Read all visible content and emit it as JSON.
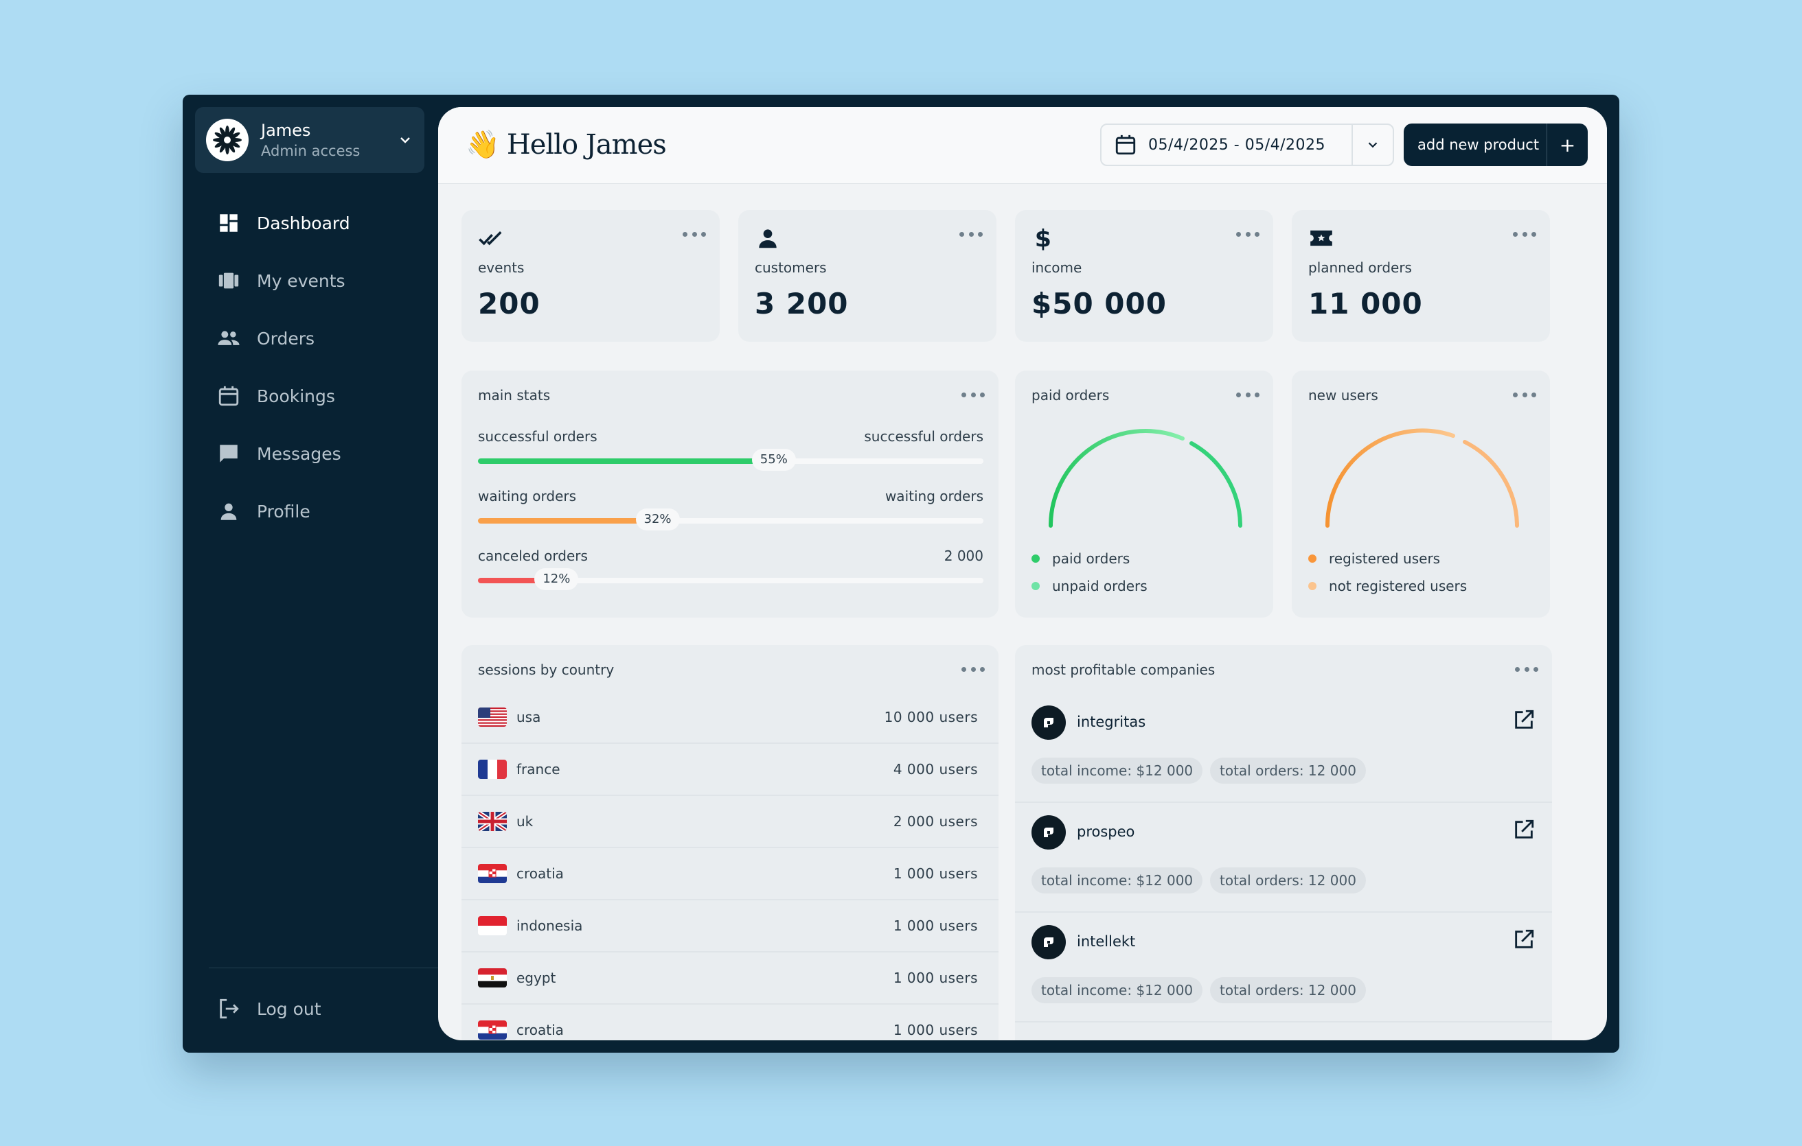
{
  "user": {
    "name": "James",
    "role": "Admin access"
  },
  "nav": {
    "items": [
      {
        "label": "Dashboard",
        "icon": "dashboard-icon",
        "active": true
      },
      {
        "label": "My events",
        "icon": "events-icon",
        "active": false
      },
      {
        "label": "Orders",
        "icon": "people-icon",
        "active": false
      },
      {
        "label": "Bookings",
        "icon": "calendar-icon",
        "active": false
      },
      {
        "label": "Messages",
        "icon": "message-icon",
        "active": false
      },
      {
        "label": "Profile",
        "icon": "person-icon",
        "active": false
      }
    ],
    "logout_label": "Log out"
  },
  "header": {
    "greeting_emoji": "👋",
    "greeting": "Hello James",
    "date_range": "05/4/2025 - 05/4/2025",
    "add_product_label": "add new product",
    "add_plus": "+"
  },
  "kpis": [
    {
      "label": "events",
      "value": "200",
      "icon": "double-check-icon"
    },
    {
      "label": "customers",
      "value": "3 200",
      "icon": "person-icon"
    },
    {
      "label": "income",
      "value": "$50 000",
      "icon": "dollar-icon"
    },
    {
      "label": "planned orders",
      "value": "11 000",
      "icon": "ticket-icon"
    }
  ],
  "main_stats": {
    "title": "main stats",
    "rows": [
      {
        "left": "successful orders",
        "right": "successful orders",
        "percent": 55,
        "percent_label": "55%",
        "color": "#2ecc6a"
      },
      {
        "left": "waiting orders",
        "right": "waiting orders",
        "percent": 32,
        "percent_label": "32%",
        "color": "#f9a04a"
      },
      {
        "left": "canceled orders",
        "right": "2 000",
        "percent": 12,
        "percent_label": "12%",
        "color": "#f25454"
      }
    ]
  },
  "paid_orders": {
    "title": "paid orders",
    "legend": [
      {
        "label": "paid orders",
        "color": "#2ecc6a"
      },
      {
        "label": "unpaid orders",
        "color": "#6fe3a6"
      }
    ]
  },
  "new_users": {
    "title": "new users",
    "legend": [
      {
        "label": "registered users",
        "color": "#f9963a"
      },
      {
        "label": "not registered users",
        "color": "#fbc48e"
      }
    ]
  },
  "sessions": {
    "title": "sessions by country",
    "rows": [
      {
        "country": "usa",
        "users": "10 000 users",
        "flag": "us"
      },
      {
        "country": "france",
        "users": "4 000 users",
        "flag": "fr"
      },
      {
        "country": "uk",
        "users": "2 000 users",
        "flag": "uk"
      },
      {
        "country": "croatia",
        "users": "1 000 users",
        "flag": "hr"
      },
      {
        "country": "indonesia",
        "users": "1 000 users",
        "flag": "id"
      },
      {
        "country": "egypt",
        "users": "1 000 users",
        "flag": "eg"
      },
      {
        "country": "croatia",
        "users": "1 000 users",
        "flag": "hr"
      }
    ]
  },
  "companies": {
    "title": "most profitable companies",
    "items": [
      {
        "name": "integritas",
        "income": "total income: $12 000",
        "orders": "total orders: 12 000"
      },
      {
        "name": "prospeo",
        "income": "total income: $12 000",
        "orders": "total orders: 12 000"
      },
      {
        "name": "intellekt",
        "income": "total income: $12 000",
        "orders": "total orders: 12 000"
      }
    ]
  }
}
